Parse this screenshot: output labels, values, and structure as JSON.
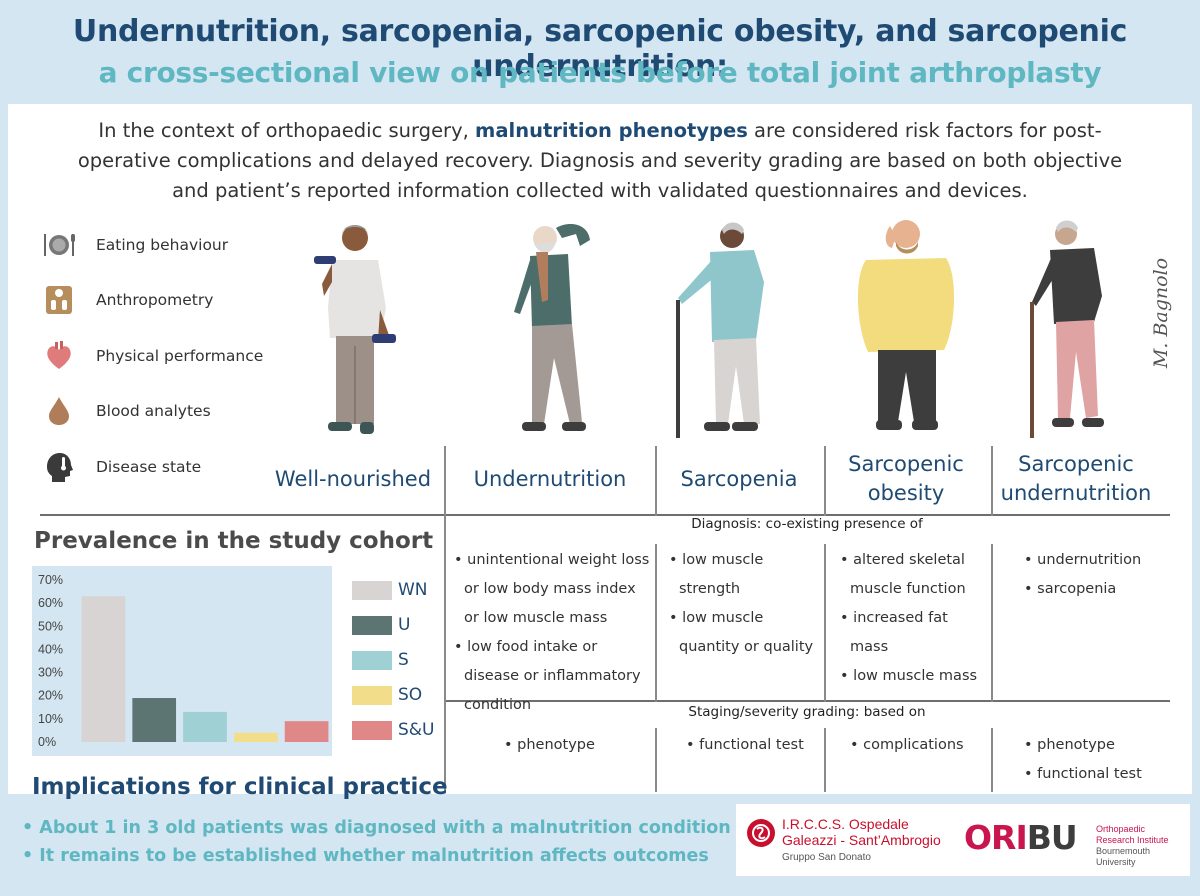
{
  "header": {
    "title": "Undernutrition, sarcopenia, sarcopenic obesity, and sarcopenic undernutrition:",
    "subtitle": "a cross-sectional view on patients before total joint arthroplasty"
  },
  "intro": {
    "part1": "In the context of orthopaedic surgery, ",
    "highlight": "malnutrition phenotypes",
    "part2": " are considered risk factors for post-operative complications and delayed recovery. Diagnosis and severity grading are based on both objective and patient’s reported information collected with validated questionnaires and devices."
  },
  "domains": [
    {
      "label": "Eating behaviour",
      "icon": "plate-cutlery-icon"
    },
    {
      "label": "Anthropometry",
      "icon": "scale-icon"
    },
    {
      "label": "Physical performance",
      "icon": "heart-icon"
    },
    {
      "label": "Blood analytes",
      "icon": "blood-drop-icon"
    },
    {
      "label": "Disease state",
      "icon": "head-thermometer-icon"
    }
  ],
  "signature": "M. Bagnolo",
  "phenotypes": [
    "Well-nourished",
    "Undernutrition",
    "Sarcopenia",
    "Sarcopenic obesity",
    "Sarcopenic undernutrition"
  ],
  "diagnosis": {
    "label": "Diagnosis: co-existing presence of",
    "columns": [
      [
        "unintentional weight loss or low body mass index or low muscle mass",
        "low food intake or disease or inflammatory condition"
      ],
      [
        "low muscle strength",
        "low muscle quantity or quality"
      ],
      [
        "altered skeletal muscle function",
        "increased fat mass",
        "low muscle mass"
      ],
      [
        "undernutrition",
        "sarcopenia"
      ]
    ]
  },
  "staging": {
    "label": "Staging/severity grading: based on",
    "columns": [
      [
        "phenotype"
      ],
      [
        "functional test"
      ],
      [
        "complications"
      ],
      [
        "phenotype",
        "functional test"
      ]
    ]
  },
  "prevalence": {
    "title": "Prevalence in the study cohort"
  },
  "chart_data": {
    "type": "bar",
    "categories": [
      "WN",
      "U",
      "S",
      "SO",
      "S&U"
    ],
    "values": [
      63,
      19,
      13,
      4,
      9
    ],
    "colors": [
      "#d9d4d4",
      "#5d7572",
      "#9fd0d3",
      "#f2dd8a",
      "#e08787"
    ],
    "ylim": [
      0,
      70
    ],
    "yticks": [
      "0%",
      "10%",
      "20%",
      "30%",
      "40%",
      "50%",
      "60%",
      "70%"
    ],
    "legend": [
      "WN",
      "U",
      "S",
      "SO",
      "S&U"
    ],
    "grid": false
  },
  "implications": {
    "title": "Implications for clinical practice",
    "points": [
      "• About 1 in 3 old patients was diagnosed with a malnutrition condition",
      "• It remains to be established whether malnutrition affects outcomes"
    ]
  },
  "logos": {
    "irccs_line1": "I.R.C.C.S. Ospedale",
    "irccs_line2": "Galeazzi - Sant’Ambrogio",
    "irccs_line3": "Gruppo San Donato",
    "oribu_ori": "ORI",
    "oribu_bu": "BU",
    "oribu_l1": "Orthopaedic",
    "oribu_l2": "Research Institute",
    "oribu_l3": "Bournemouth University"
  }
}
